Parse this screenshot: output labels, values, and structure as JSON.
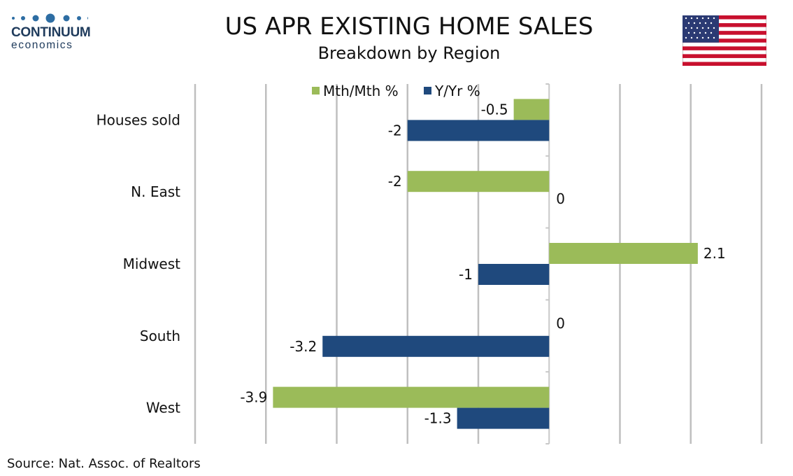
{
  "header": {
    "title": "US APR EXISTING HOME SALES",
    "subtitle": "Breakdown by Region"
  },
  "logo": {
    "brand": "CONTINUUM",
    "sub": "economics",
    "color": "#1f3b5c"
  },
  "flag": {
    "name": "us-flag-icon"
  },
  "footer": {
    "source": "Source: Nat. Assoc. of Realtors"
  },
  "chart_data": {
    "type": "bar",
    "orientation": "horizontal",
    "categories": [
      "Houses sold",
      "N. East",
      "Midwest",
      "South",
      "West"
    ],
    "series": [
      {
        "name": "Mth/Mth %",
        "color": "#9bbb59",
        "values": [
          -0.5,
          -2,
          2.1,
          0,
          -3.9
        ],
        "labels": [
          "-0.5",
          "-2",
          "2.1",
          "0",
          "-3.9"
        ]
      },
      {
        "name": "Y/Yr %",
        "color": "#1f497d",
        "values": [
          -2,
          0,
          -1,
          -3.2,
          -1.3
        ],
        "labels": [
          "-2",
          "0",
          "-1",
          "-3.2",
          "-1.3"
        ]
      }
    ],
    "xlim": [
      -5,
      3
    ],
    "grid": true,
    "legend": "top-center"
  }
}
